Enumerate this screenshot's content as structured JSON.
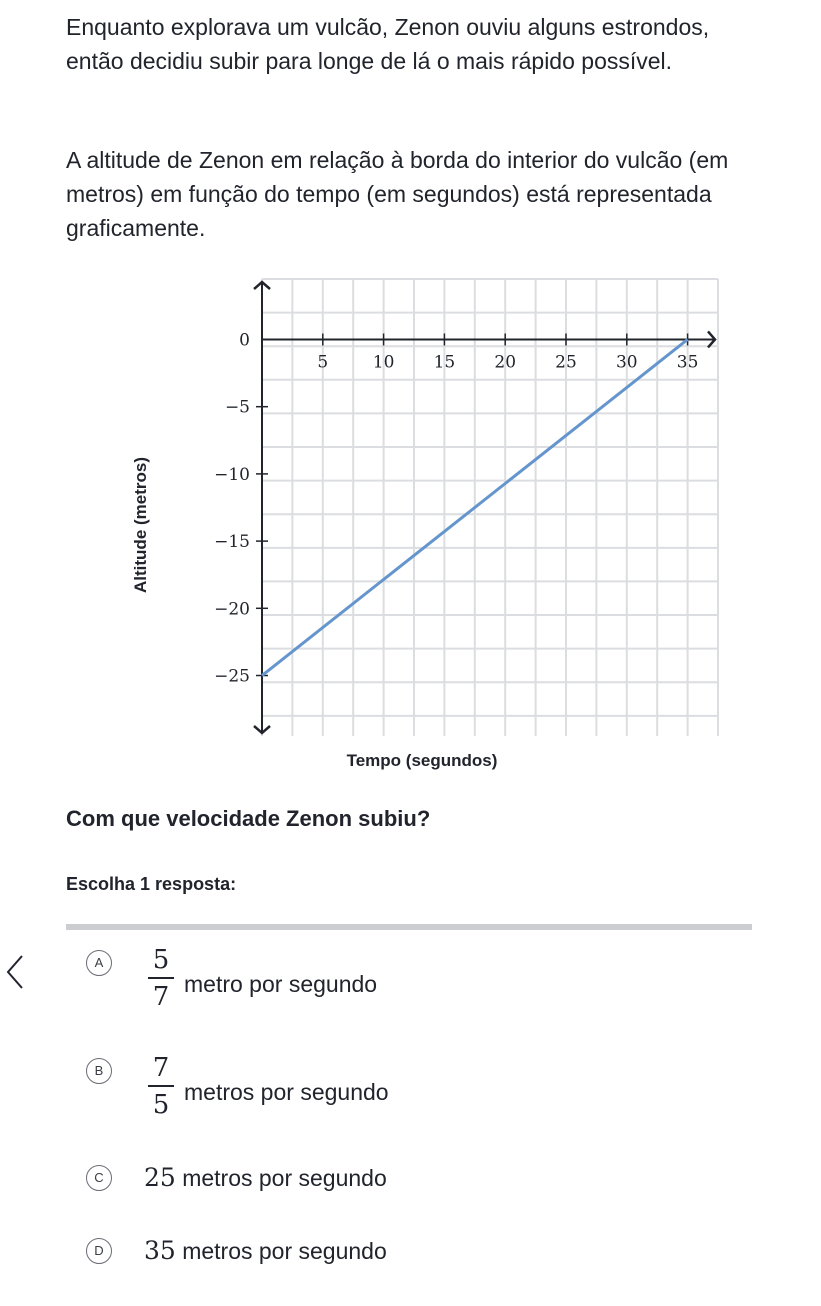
{
  "problem": {
    "paragraph1": "Enquanto explorava um vulcão, Zenon ouviu alguns estrondos, então decidiu subir para longe de lá o mais rápido possível.",
    "paragraph2": "A altitude de Zenon em relação à borda do interior do vulcão (em metros) em função do tempo (em segundos) está representada graficamente.",
    "question": "Com que velocidade Zenon subiu?",
    "instruction": "Escolha 1 resposta:"
  },
  "chart_data": {
    "type": "line",
    "xlabel": "Tempo (segundos)",
    "ylabel": "Altitude (metros)",
    "x_ticks": [
      "5",
      "10",
      "15",
      "20",
      "25",
      "30",
      "35"
    ],
    "y_ticks": [
      "0",
      "−5",
      "−10",
      "−15",
      "−20",
      "−25"
    ],
    "xlim": [
      0,
      37.5
    ],
    "ylim": [
      -29.5,
      4.5
    ],
    "grid": true,
    "series": [
      {
        "x": [
          0,
          35
        ],
        "y": [
          -25,
          0
        ],
        "color": "#6495cc"
      }
    ]
  },
  "choices": [
    {
      "letter": "A",
      "numerator": "5",
      "denominator": "7",
      "text": "metro por segundo"
    },
    {
      "letter": "B",
      "numerator": "7",
      "denominator": "5",
      "text": "metros por segundo"
    },
    {
      "letter": "C",
      "value": "25",
      "text": "metros por segundo"
    },
    {
      "letter": "D",
      "value": "35",
      "text": "metros por segundo"
    }
  ],
  "icons": {
    "nav": "chevron-left-icon"
  }
}
